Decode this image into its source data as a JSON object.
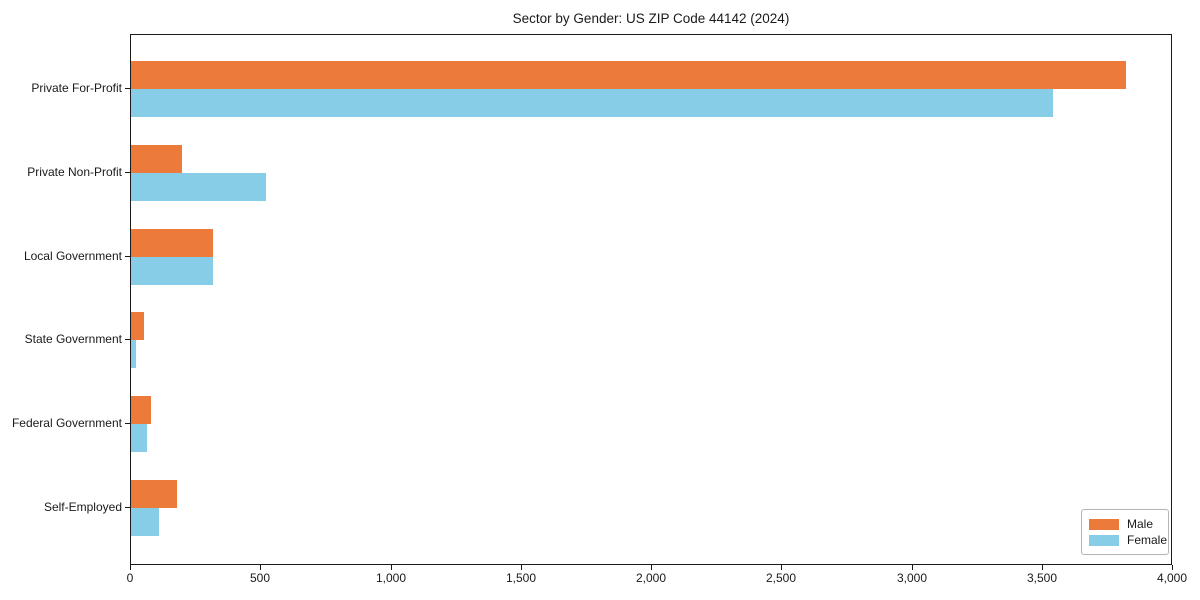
{
  "title": "Sector by Gender: US ZIP Code 44142 (2024)",
  "chart_data": {
    "type": "bar",
    "orientation": "horizontal",
    "title": "Sector by Gender: US ZIP Code 44142 (2024)",
    "xlabel": "",
    "ylabel": "",
    "categories": [
      "Private For-Profit",
      "Private Non-Profit",
      "Local Government",
      "State Government",
      "Federal Government",
      "Self-Employed"
    ],
    "series": [
      {
        "name": "Male",
        "color": "#EB7A3B",
        "values": [
          3820,
          195,
          315,
          50,
          78,
          175
        ]
      },
      {
        "name": "Female",
        "color": "#87CDE8",
        "values": [
          3540,
          520,
          315,
          18,
          63,
          108
        ]
      }
    ],
    "xlim": [
      0,
      4000
    ],
    "xticks": [
      0,
      500,
      1000,
      1500,
      2000,
      2500,
      3000,
      3500,
      4000
    ],
    "xtick_labels": [
      "0",
      "500",
      "1,000",
      "1,500",
      "2,000",
      "2,500",
      "3,000",
      "3,500",
      "4,000"
    ],
    "grid": false,
    "legend": {
      "position": "lower right"
    }
  }
}
